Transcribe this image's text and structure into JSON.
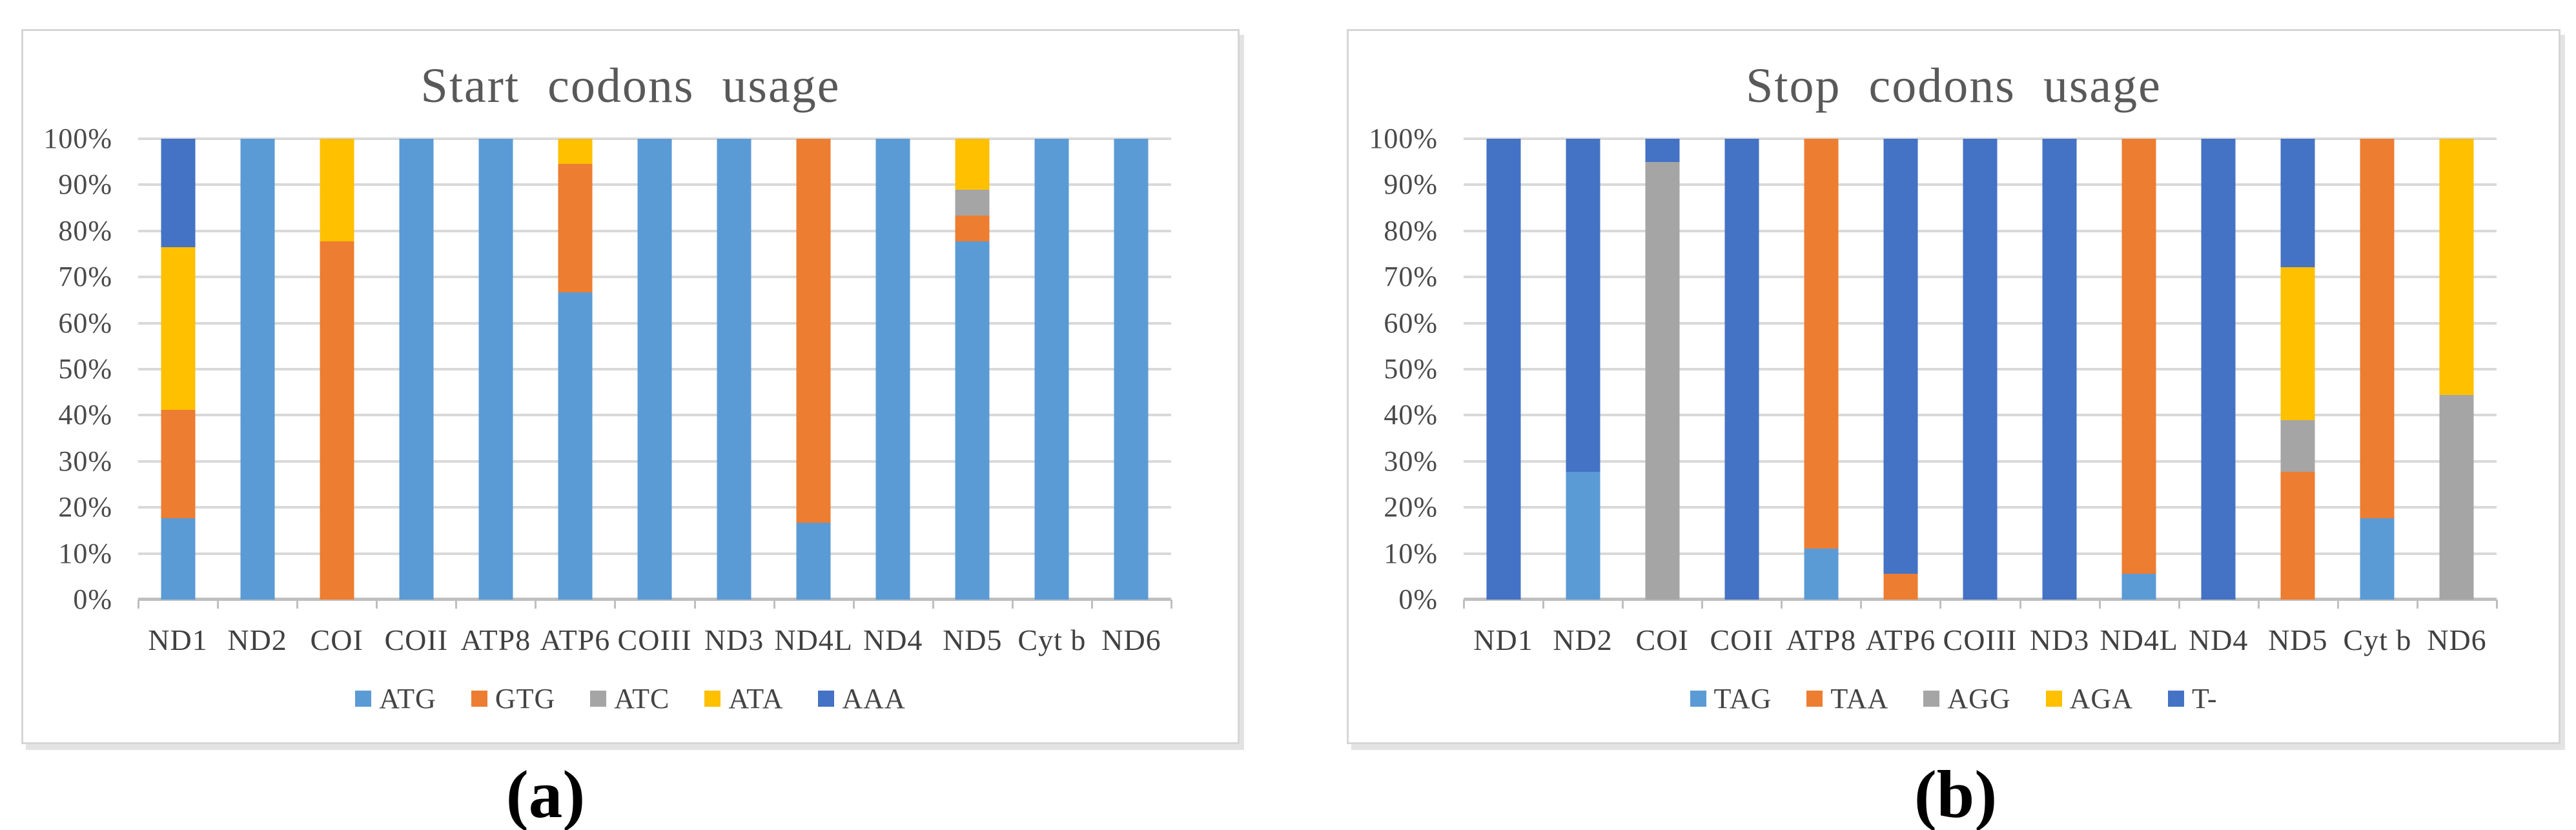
{
  "page": {
    "background": "#ffffff"
  },
  "captions": {
    "a": "(a)",
    "b": "(b)"
  },
  "palette": {
    "series_blue": "#5B9BD5",
    "series_orange": "#ED7D31",
    "series_gray": "#A5A5A5",
    "series_yellow": "#FFC000",
    "series_darkblue": "#4472C4",
    "gridline": "#D9D9D9",
    "axis_line": "#BFBFBF",
    "title_text": "#595959",
    "axis_text": "#404040",
    "panel_border": "#D6D6D6"
  },
  "chart_data": [
    {
      "id": "start-codons",
      "type": "bar",
      "stacked": true,
      "units": "percent",
      "title": "Start codons usage",
      "grid": true,
      "legend_position": "bottom",
      "ylim": [
        0,
        100
      ],
      "y_axis_labels": [
        "0%",
        "10%",
        "20%",
        "30%",
        "40%",
        "50%",
        "60%",
        "70%",
        "80%",
        "90%",
        "100%"
      ],
      "categories": [
        "ND1",
        "ND2",
        "COI",
        "COII",
        "ATP8",
        "ATP6",
        "COIII",
        "ND3",
        "ND4L",
        "ND4",
        "ND5",
        "Cyt b",
        "ND6"
      ],
      "series": [
        {
          "name": "ATG",
          "color": "#5B9BD5",
          "values": [
            17.6,
            100,
            0,
            100,
            100,
            66.7,
            100,
            100,
            16.7,
            100,
            77.8,
            100,
            100
          ]
        },
        {
          "name": "GTG",
          "color": "#ED7D31",
          "values": [
            23.6,
            0,
            77.8,
            0,
            0,
            27.8,
            0,
            0,
            83.3,
            0,
            5.6,
            0,
            0
          ]
        },
        {
          "name": "ATC",
          "color": "#A5A5A5",
          "values": [
            0,
            0,
            0,
            0,
            0,
            0,
            0,
            0,
            0,
            0,
            5.5,
            0,
            0
          ]
        },
        {
          "name": "ATA",
          "color": "#FFC000",
          "values": [
            35.3,
            0,
            22.2,
            0,
            0,
            5.5,
            0,
            0,
            0,
            0,
            11.1,
            0,
            0
          ]
        },
        {
          "name": "AAA",
          "color": "#4472C4",
          "values": [
            23.5,
            0,
            0,
            0,
            0,
            0,
            0,
            0,
            0,
            0,
            0,
            0,
            0
          ]
        }
      ]
    },
    {
      "id": "stop-codons",
      "type": "bar",
      "stacked": true,
      "units": "percent",
      "title": "Stop codons usage",
      "grid": true,
      "legend_position": "bottom",
      "ylim": [
        0,
        100
      ],
      "y_axis_labels": [
        "0%",
        "10%",
        "20%",
        "30%",
        "40%",
        "50%",
        "60%",
        "70%",
        "80%",
        "90%",
        "100%"
      ],
      "categories": [
        "ND1",
        "ND2",
        "COI",
        "COII",
        "ATP8",
        "ATP6",
        "COIII",
        "ND3",
        "ND4L",
        "ND4",
        "ND5",
        "Cyt b",
        "ND6"
      ],
      "series": [
        {
          "name": "TAG",
          "color": "#5B9BD5",
          "values": [
            0,
            27.8,
            0,
            0,
            11.1,
            0,
            0,
            0,
            5.6,
            0,
            0,
            17.6,
            0
          ]
        },
        {
          "name": "TAA",
          "color": "#ED7D31",
          "values": [
            0,
            0,
            0,
            0,
            88.9,
            5.6,
            0,
            0,
            94.4,
            0,
            27.8,
            82.4,
            0
          ]
        },
        {
          "name": "AGG",
          "color": "#A5A5A5",
          "values": [
            0,
            0,
            95,
            0,
            0,
            0,
            0,
            0,
            0,
            0,
            11.1,
            0,
            44.4
          ]
        },
        {
          "name": "AGA",
          "color": "#FFC000",
          "values": [
            0,
            0,
            0,
            0,
            0,
            0,
            0,
            0,
            0,
            0,
            33.3,
            0,
            55.6
          ]
        },
        {
          "name": "T-",
          "color": "#4472C4",
          "values": [
            100,
            72.2,
            5,
            100,
            0,
            94.4,
            100,
            100,
            0,
            100,
            27.8,
            0,
            0
          ]
        }
      ]
    }
  ]
}
